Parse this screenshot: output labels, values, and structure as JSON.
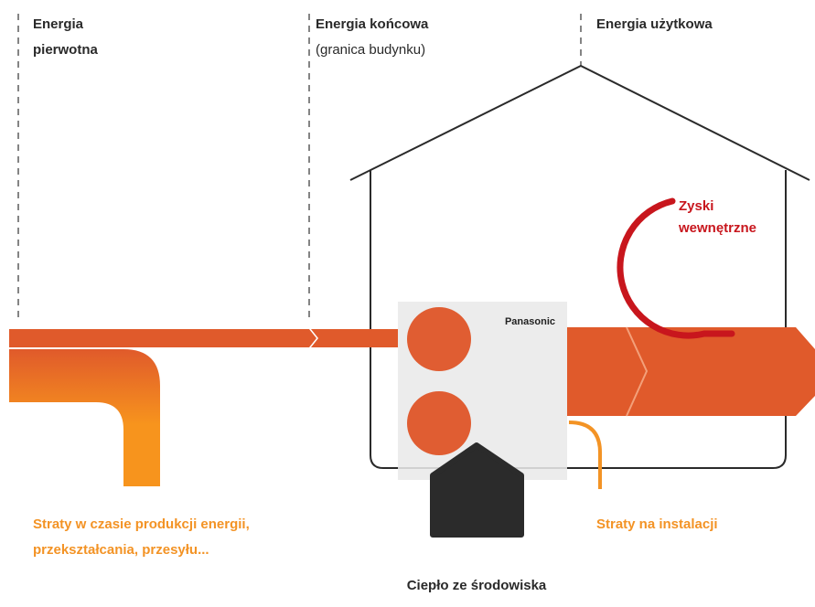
{
  "columns": [
    {
      "line1": "Energia",
      "line2": "pierwotna"
    },
    {
      "line1": "Energia końcowa",
      "line2": "(granica budynku)"
    },
    {
      "line1": "Energia użytkowa"
    }
  ],
  "labels": {
    "gains": {
      "line1": "Zyski",
      "line2": "wewnętrzne"
    },
    "production_losses": {
      "line1": "Straty w czasie produkcji energii,",
      "line2": "przekształcania, przesyłu..."
    },
    "installation_losses": "Straty na instalacji",
    "environment_heat": "Ciepło ze środowiska",
    "brand": "Panasonic"
  }
}
